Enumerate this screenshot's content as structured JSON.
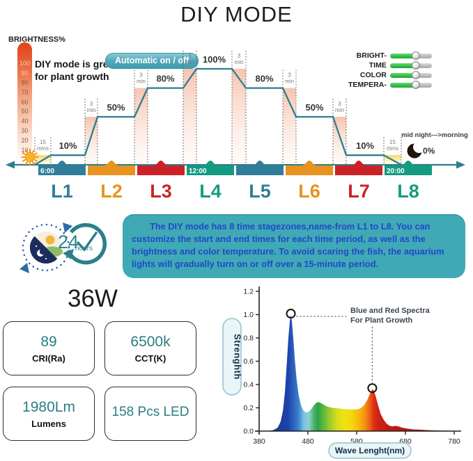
{
  "title": "DIY MODE",
  "diy": {
    "brightness_label": "BRIGHTNESS%",
    "note_line1": "DIY mode is great",
    "note_line2": "for plant growth",
    "auto_badge": "Automatic on / off",
    "toggles": [
      {
        "key": "brightness",
        "label": "BRIGHT-"
      },
      {
        "key": "time",
        "label": "TIME"
      },
      {
        "key": "color",
        "label": "COLOR"
      },
      {
        "key": "temperature",
        "label": "TEMPERA-"
      }
    ],
    "midnight_label": "mid night--->morning"
  },
  "chart_data": [
    {
      "id": "diy_schedule",
      "type": "line",
      "title": "DIY MODE",
      "categories": [
        "L1",
        "L2",
        "L3",
        "L4",
        "L5",
        "L6",
        "L7",
        "L8"
      ],
      "values": [
        10,
        50,
        80,
        100,
        80,
        50,
        10,
        0
      ],
      "percent_labels": [
        "10%",
        "50%",
        "80%",
        "100%",
        "80%",
        "50%",
        "10%",
        "0%"
      ],
      "stage_colors": [
        "#2f7d99",
        "#e8921f",
        "#cc2127",
        "#149b82",
        "#2f7d99",
        "#e8921f",
        "#cc2127",
        "#149b82"
      ],
      "times": [
        "6:00",
        "",
        "",
        "12:00",
        "",
        "",
        "",
        "20:00"
      ],
      "transition_labels": [
        "15 mins",
        "3 min",
        "3 min",
        "3 min",
        "3 min",
        "3 min",
        "3 min",
        "15 mins"
      ],
      "line_color": "#2b7f8e",
      "ylabel": "BRIGHTNESS%",
      "yticks": [
        100,
        90,
        80,
        70,
        60,
        50,
        40,
        30,
        20,
        10
      ],
      "ylim": [
        0,
        100
      ]
    },
    {
      "id": "spectrum",
      "type": "area",
      "xlabel": "Wave Lenght(nm)",
      "ylabel": "Strenghth",
      "xlim": [
        380,
        780
      ],
      "ylim": [
        0,
        1.2
      ],
      "xticks": [
        380,
        480,
        580,
        680,
        780
      ],
      "yticks": [
        "0.0",
        "0.2",
        "0.4",
        "0.6",
        "0.8",
        "1.0",
        "1.2"
      ],
      "annotation_line1": "Blue and Red Spectra",
      "annotation_line2": "For Plant Growth",
      "peaks": [
        {
          "x": 445,
          "y": 1.0
        },
        {
          "x": 612,
          "y": 0.36
        }
      ],
      "points": [
        [
          380,
          0
        ],
        [
          400,
          0.002
        ],
        [
          410,
          0.01
        ],
        [
          418,
          0.03
        ],
        [
          424,
          0.08
        ],
        [
          429,
          0.18
        ],
        [
          433,
          0.34
        ],
        [
          437,
          0.6
        ],
        [
          440,
          0.8
        ],
        [
          443,
          0.95
        ],
        [
          445,
          1.0
        ],
        [
          447,
          0.95
        ],
        [
          450,
          0.8
        ],
        [
          453,
          0.62
        ],
        [
          457,
          0.44
        ],
        [
          461,
          0.31
        ],
        [
          466,
          0.22
        ],
        [
          471,
          0.175
        ],
        [
          476,
          0.16
        ],
        [
          481,
          0.165
        ],
        [
          487,
          0.19
        ],
        [
          493,
          0.225
        ],
        [
          498,
          0.245
        ],
        [
          502,
          0.25
        ],
        [
          507,
          0.24
        ],
        [
          513,
          0.225
        ],
        [
          520,
          0.21
        ],
        [
          530,
          0.2
        ],
        [
          542,
          0.195
        ],
        [
          555,
          0.19
        ],
        [
          568,
          0.185
        ],
        [
          580,
          0.185
        ],
        [
          588,
          0.195
        ],
        [
          595,
          0.22
        ],
        [
          601,
          0.26
        ],
        [
          606,
          0.31
        ],
        [
          610,
          0.345
        ],
        [
          612,
          0.36
        ],
        [
          615,
          0.35
        ],
        [
          619,
          0.3
        ],
        [
          624,
          0.22
        ],
        [
          629,
          0.15
        ],
        [
          635,
          0.1
        ],
        [
          641,
          0.065
        ],
        [
          648,
          0.045
        ],
        [
          654,
          0.04
        ],
        [
          660,
          0.045
        ],
        [
          666,
          0.04
        ],
        [
          673,
          0.03
        ],
        [
          682,
          0.022
        ],
        [
          695,
          0.015
        ],
        [
          710,
          0.012
        ],
        [
          730,
          0.008
        ],
        [
          755,
          0.005
        ],
        [
          780,
          0.003
        ]
      ]
    }
  ],
  "info": {
    "hours_number": "24",
    "hours_unit": "hours",
    "text": "The DIY mode has 8 time stagezones,name-from L1 to L8. You can customize the start and end times for each time period, as well as the brightness and color temperature. To avoid scaring the fish, the aquarium lights will gradually turn on or off over a 15-minute period."
  },
  "specs": {
    "wattage": "36W",
    "boxes": [
      {
        "value": "89",
        "label": "CRI(Ra)"
      },
      {
        "value": "6500k",
        "label": "CCT(K)"
      },
      {
        "value": "1980Lm",
        "label": "Lumens"
      },
      {
        "value": "158 Pcs LED",
        "label": ""
      }
    ]
  }
}
